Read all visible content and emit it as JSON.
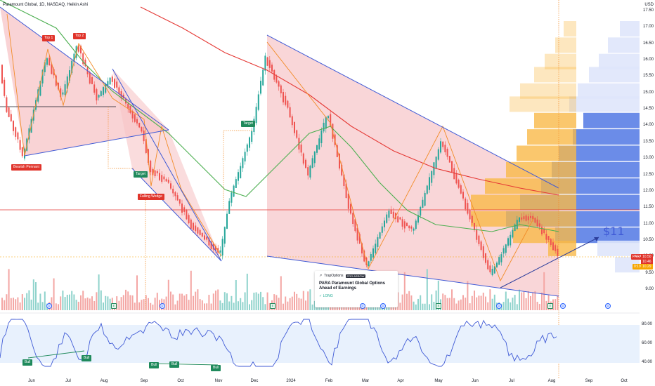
{
  "header": {
    "symbol_line": "Paramount Global, 1D, NASDAQ, Heikin Ashi"
  },
  "price_axis": {
    "currency": "USD",
    "ticks": [
      "17.50",
      "17.00",
      "16.50",
      "16.00",
      "15.50",
      "15.00",
      "14.50",
      "14.00",
      "13.50",
      "13.00",
      "12.50",
      "12.00",
      "11.50",
      "11.00",
      "10.50",
      "10.00",
      "9.50",
      "9.00"
    ],
    "tick_values": [
      17.5,
      17,
      16.5,
      16,
      15.5,
      15,
      14.5,
      14,
      13.5,
      13,
      12.5,
      12,
      11.5,
      11,
      10.5,
      10,
      9.5,
      9
    ]
  },
  "price_badges": [
    {
      "text": "PARA",
      "color": "#e0342b"
    },
    {
      "text": "10.50",
      "color": "#e0342b"
    },
    {
      "text": "10.46",
      "color": "#e0342b"
    },
    {
      "text": "0:19",
      "color": "#f7a600"
    },
    {
      "text": "10.29",
      "color": "#f7a600"
    }
  ],
  "rsi_axis": {
    "ticks": [
      "80.00",
      "60.00",
      "40.00"
    ],
    "tick_values": [
      80,
      60,
      40
    ]
  },
  "time_axis": {
    "ticks": [
      "Jun",
      "Jul",
      "Aug",
      "Sep",
      "Oct",
      "Nov",
      "Dec",
      "2024",
      "Feb",
      "Mar",
      "Apr",
      "May",
      "Jun",
      "Jul",
      "Aug",
      "Sep",
      "Oct"
    ]
  },
  "annotations": {
    "bearish_pennant": "Bearish Pennant",
    "top1": "Top 1",
    "top2": "Top 2",
    "target1": "Target",
    "target2": "Target",
    "falling_wedge": "Falling Wedge",
    "bull1": "Bull",
    "bull2": "Bull",
    "bull3": "Bull",
    "bull4": "Bull",
    "bull5": "Bull",
    "price_target": "$11"
  },
  "idea_card": {
    "brand": "TrapOptions",
    "pro": "PRO ARROW",
    "title": "PARA Paramount Global   Options Ahead of Earnings",
    "signal": "✓ LONG"
  },
  "earnings_markers": [
    "D",
    "E",
    "D",
    "E",
    "D",
    "D",
    "E",
    "D",
    "E",
    "D",
    "D"
  ],
  "colors": {
    "up": "#26a69a",
    "down": "#ef5350",
    "ma_green": "#4caf50",
    "ma_red": "#e53935",
    "pattern_fill": "#f7c4c7",
    "trend_blue": "#3f5ad6",
    "vp_blue": "#5b7fe6",
    "vp_orange": "#f9b949"
  }
}
